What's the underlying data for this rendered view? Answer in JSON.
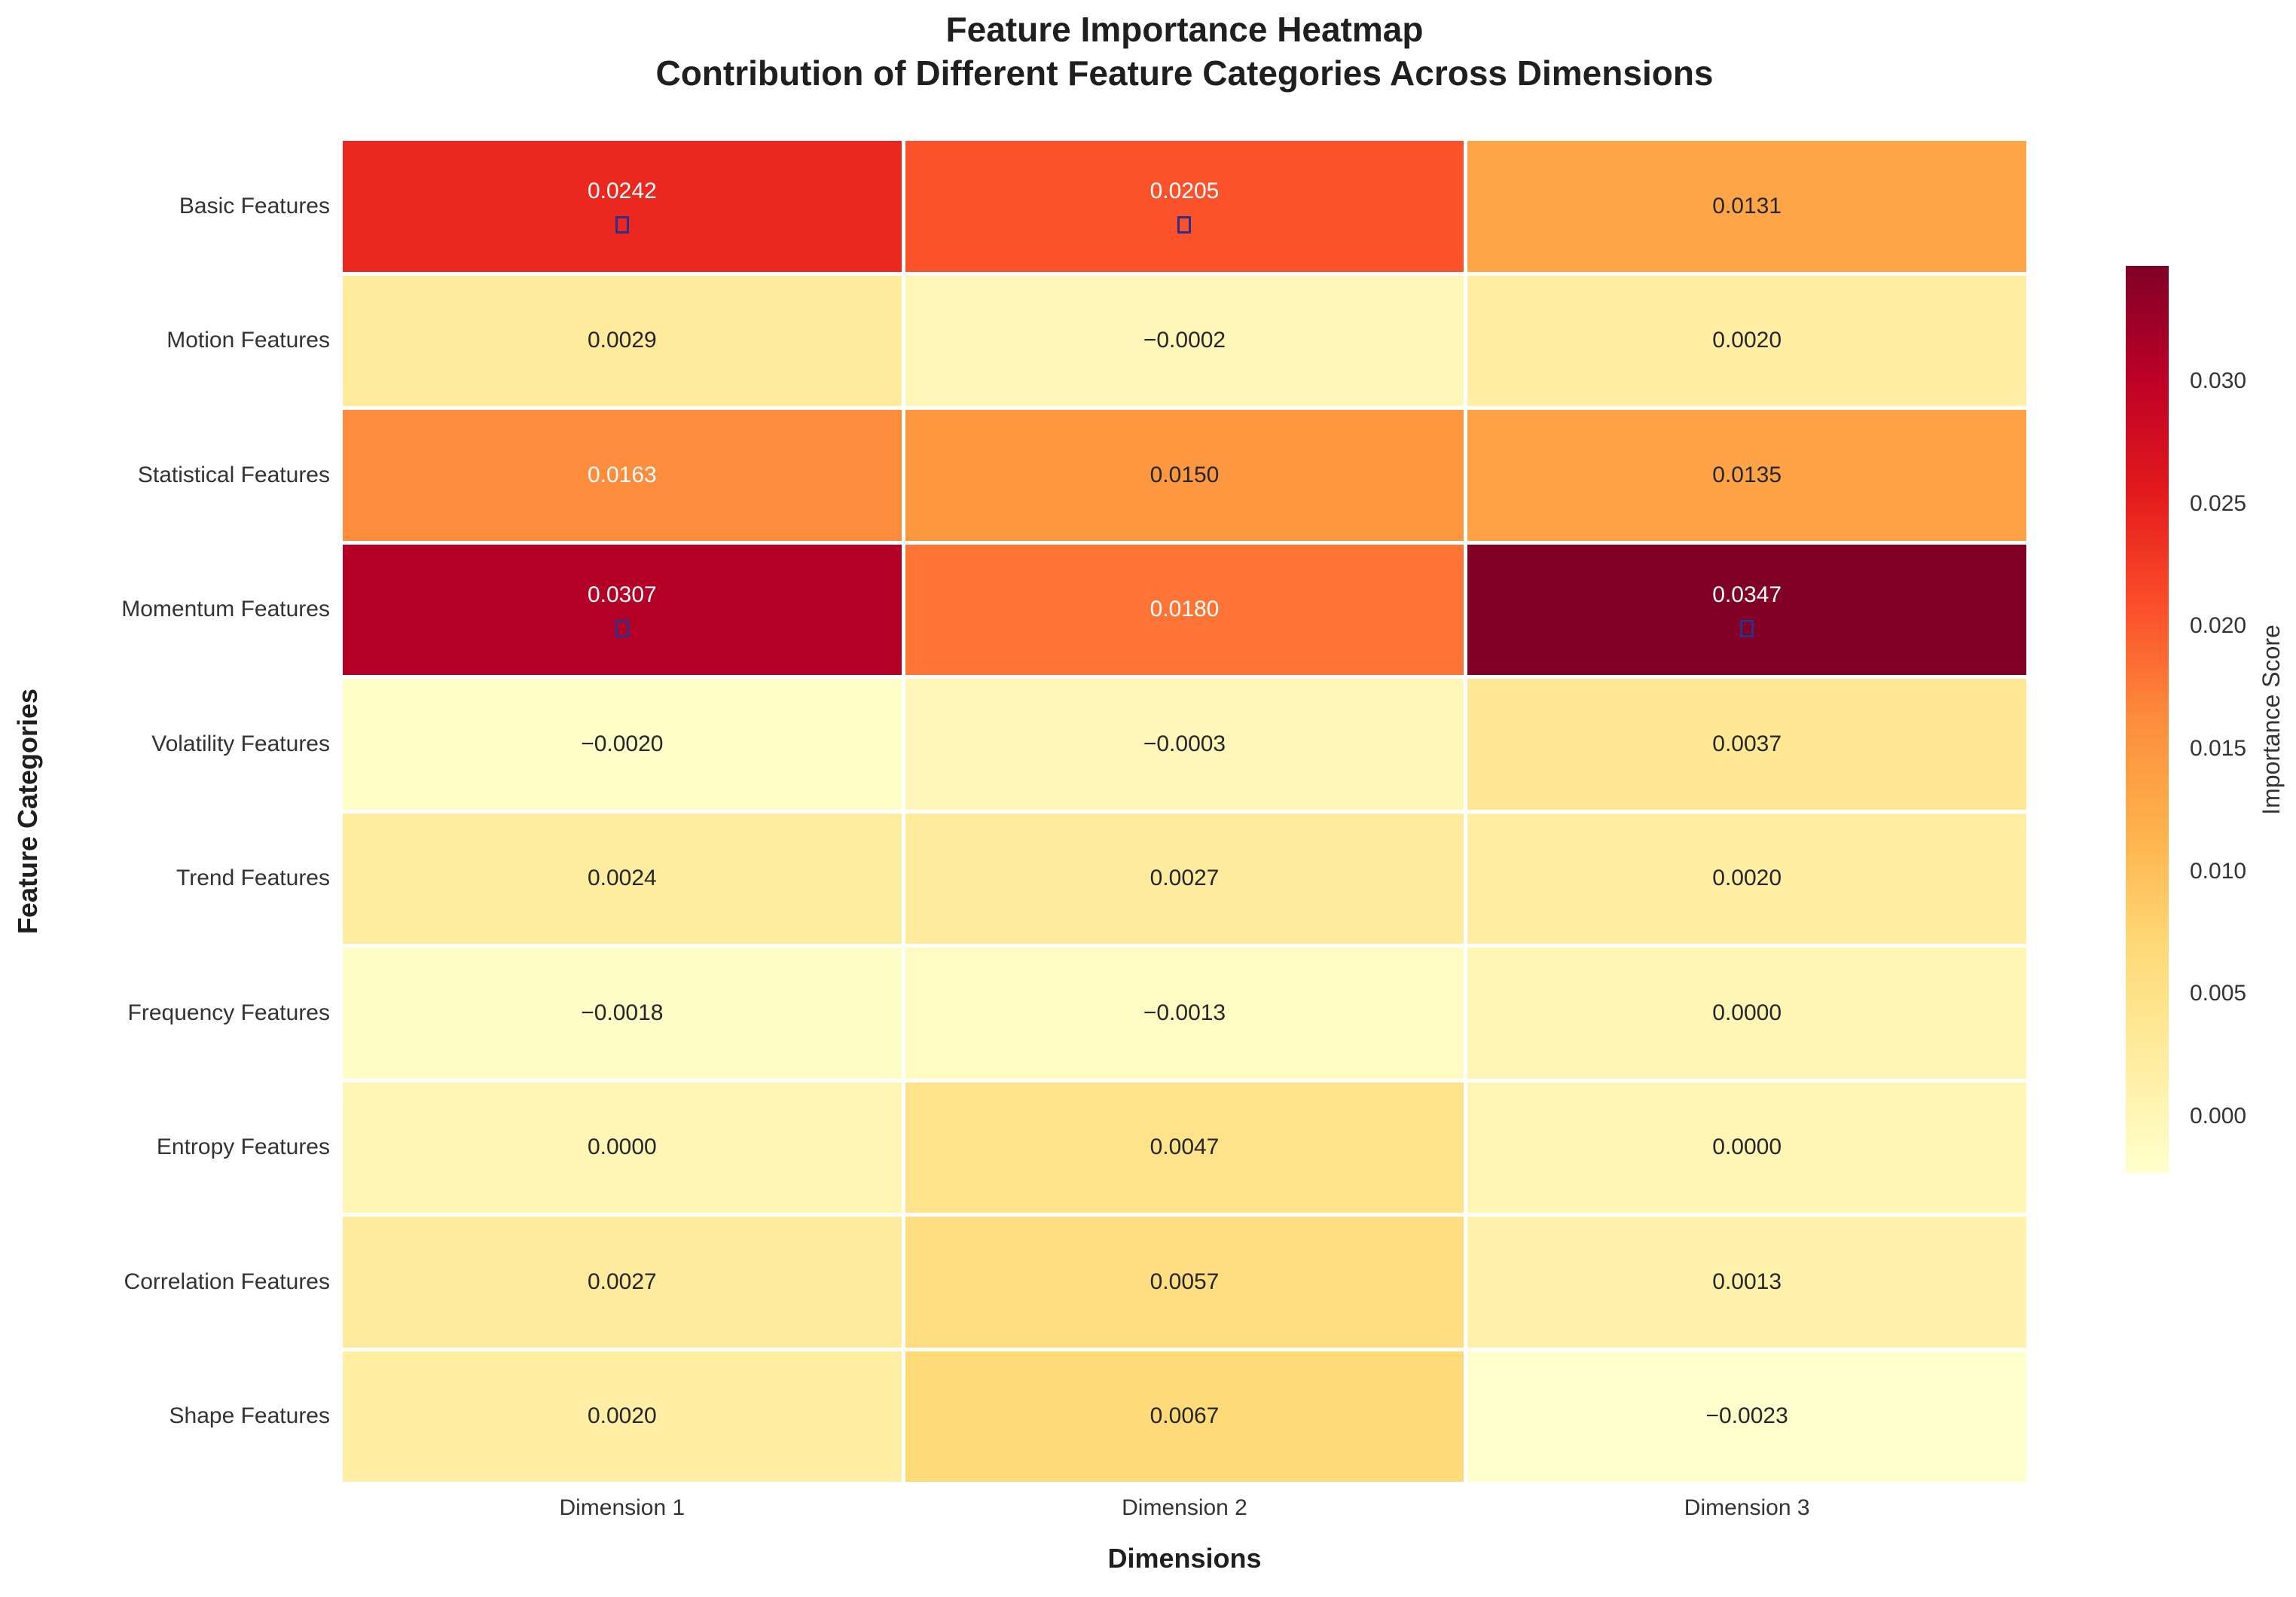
{
  "title": {
    "line1": "Feature Importance Heatmap",
    "line2": "Contribution of Different Feature Categories Across Dimensions"
  },
  "chart_data": {
    "type": "heatmap",
    "title": "Feature Importance Heatmap",
    "subtitle": "Contribution of Different Feature Categories Across Dimensions",
    "xlabel": "Dimensions",
    "ylabel": "Feature Categories",
    "columns": [
      "Dimension 1",
      "Dimension 2",
      "Dimension 3"
    ],
    "rows": [
      "Basic Features",
      "Motion Features",
      "Statistical Features",
      "Momentum Features",
      "Volatility Features",
      "Trend Features",
      "Frequency Features",
      "Entropy Features",
      "Correlation Features",
      "Shape Features"
    ],
    "values": [
      [
        0.0242,
        0.0205,
        0.0131
      ],
      [
        0.0029,
        -0.0002,
        0.002
      ],
      [
        0.0163,
        0.015,
        0.0135
      ],
      [
        0.0307,
        0.018,
        0.0347
      ],
      [
        -0.002,
        -0.0003,
        0.0037
      ],
      [
        0.0024,
        0.0027,
        0.002
      ],
      [
        -0.0018,
        -0.0013,
        0.0
      ],
      [
        0.0,
        0.0047,
        0.0
      ],
      [
        0.0027,
        0.0057,
        0.0013
      ],
      [
        0.002,
        0.0067,
        -0.0023
      ]
    ],
    "value_decimals": 4,
    "marker_cells": [
      [
        0,
        0
      ],
      [
        0,
        1
      ],
      [
        3,
        0
      ],
      [
        3,
        2
      ]
    ],
    "marker_glyph": "missing-glyph-box",
    "colorbar": {
      "label": "Importance Score",
      "tick_labels": [
        "0.000",
        "0.005",
        "0.010",
        "0.015",
        "0.020",
        "0.025",
        "0.030"
      ],
      "vmin": -0.0023,
      "vmax": 0.0347,
      "colormap": "YlOrRd"
    },
    "grid": false,
    "legend_position": "right-colorbar"
  },
  "colors": {
    "background": "#ffffff",
    "gridline": "#ffffff",
    "title_text": "#1f1f1f",
    "label_text": "#333333",
    "annot_dark": "#262626",
    "annot_light": "#ffffff",
    "marker_border": "#2e2e8c",
    "colormap_stops": [
      "#ffffcc",
      "#ffeda0",
      "#fed976",
      "#feb24c",
      "#fd8d3c",
      "#fc4e2a",
      "#e31a1c",
      "#bd0026",
      "#800026"
    ]
  }
}
